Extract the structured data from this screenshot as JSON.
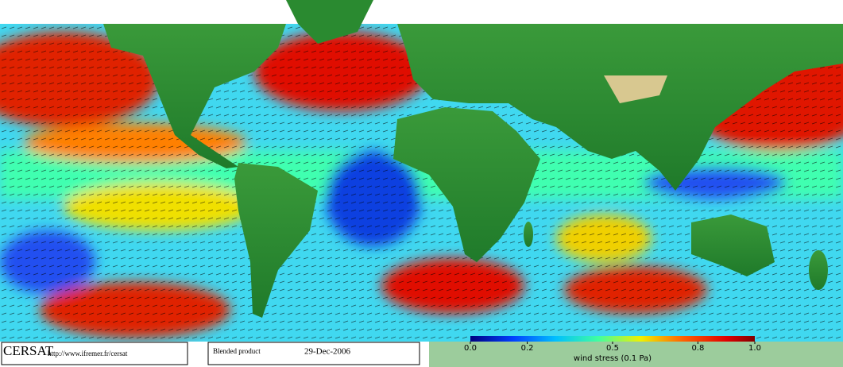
{
  "footer": {
    "brand": "CERSAT",
    "url": "http://www.ifremer.fr/cersat",
    "product": "Blended product",
    "date": "29-Dec-2006"
  },
  "colorbar": {
    "label": "wind stress (0.1 Pa)",
    "ticks": [
      {
        "value": 0,
        "label": "0.0"
      },
      0.2,
      0.5,
      0.8,
      {
        "value": 1,
        "label": "1.0"
      }
    ]
  }
}
